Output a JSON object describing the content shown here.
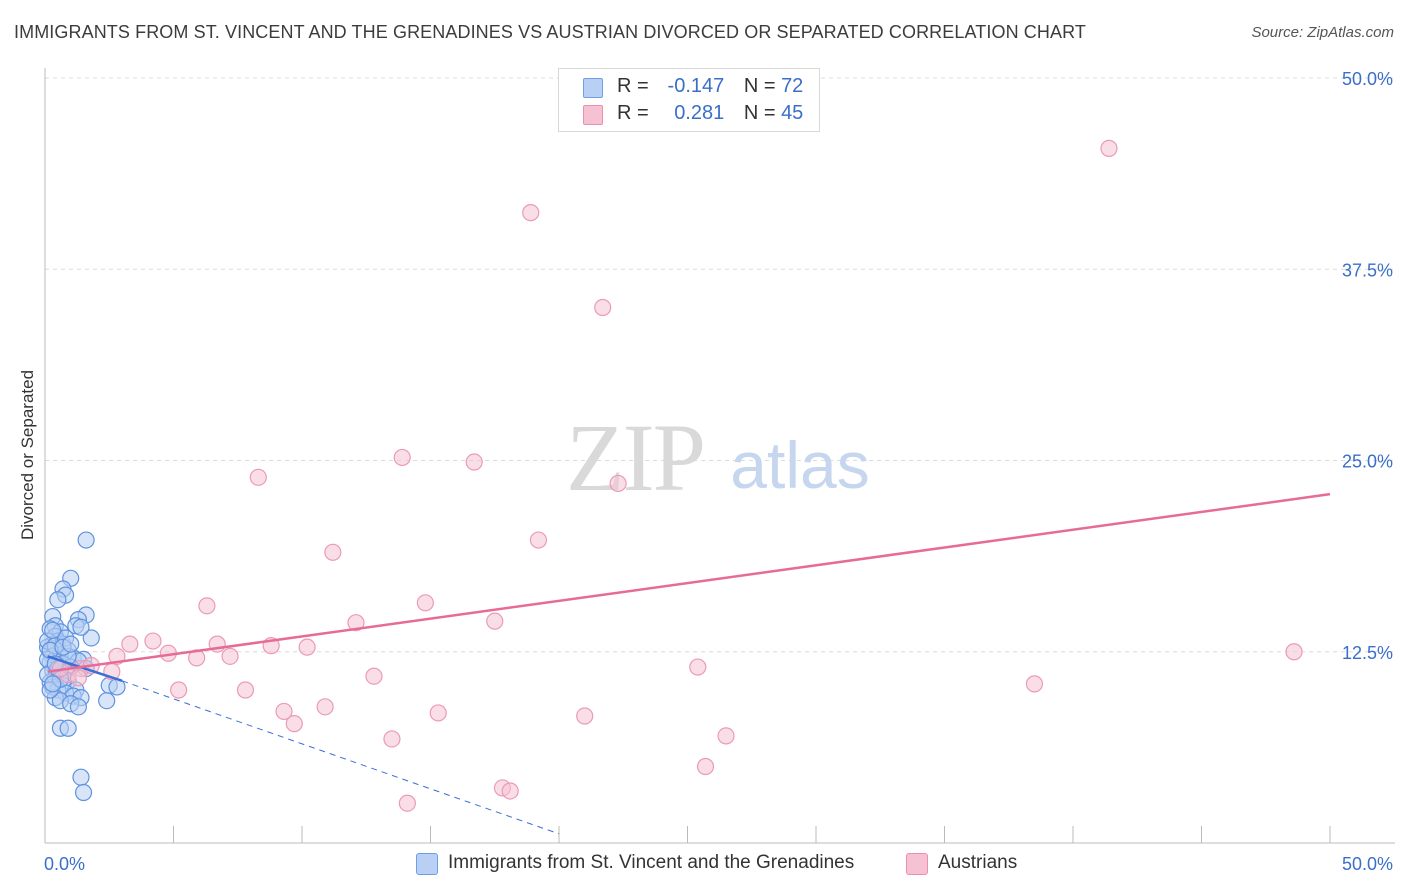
{
  "header": {
    "title": "IMMIGRANTS FROM ST. VINCENT AND THE GRENADINES VS AUSTRIAN DIVORCED OR SEPARATED CORRELATION CHART",
    "source": "Source: ZipAtlas.com"
  },
  "watermark": {
    "zip": "ZIP",
    "atlas": "atlas"
  },
  "legend": {
    "rows": [
      {
        "r_label": "R =",
        "r_value": "-0.147",
        "n_label": "N =",
        "n_value": "72"
      },
      {
        "r_label": "R =",
        "r_value": "0.281",
        "n_label": "N =",
        "n_value": "45"
      }
    ]
  },
  "colors": {
    "blue": "#3a6fd8",
    "blue_fill": "#b8d0f3",
    "pink": "#e76b97",
    "pink_fill": "#f6c2d3",
    "grid": "#dcdcdc",
    "tick_label": "#3a6fc9"
  },
  "chart_data": {
    "type": "scatter",
    "title": "IMMIGRANTS FROM ST. VINCENT AND THE GRENADINES VS AUSTRIAN DIVORCED OR SEPARATED CORRELATION CHART",
    "xlabel": "",
    "ylabel": "Divorced or Separated",
    "xlim": [
      0,
      50
    ],
    "ylim": [
      0,
      50
    ],
    "x_tick_labels": [
      "0.0%",
      "50.0%"
    ],
    "y_ticks": [
      12.5,
      25.0,
      37.5,
      50.0
    ],
    "y_tick_labels": [
      "12.5%",
      "25.0%",
      "37.5%",
      "50.0%"
    ],
    "grid": true,
    "legend_position": "top-center",
    "series": [
      {
        "name": "Immigrants from St. Vincent and the Grenadines",
        "color": "#3a6fd8",
        "r": -0.147,
        "n": 72,
        "trend": {
          "solid": [
            [
              0.1,
              12.2
            ],
            [
              3.0,
              10.6
            ]
          ],
          "dashed": [
            [
              3.0,
              10.6
            ],
            [
              20.0,
              0.6
            ]
          ]
        },
        "points": [
          [
            1.6,
            19.8
          ],
          [
            1.0,
            17.3
          ],
          [
            0.7,
            16.6
          ],
          [
            0.8,
            16.2
          ],
          [
            0.5,
            15.9
          ],
          [
            1.6,
            14.9
          ],
          [
            1.3,
            14.6
          ],
          [
            0.3,
            14.8
          ],
          [
            0.4,
            14.2
          ],
          [
            1.2,
            14.2
          ],
          [
            0.2,
            14.0
          ],
          [
            0.6,
            13.8
          ],
          [
            0.4,
            13.5
          ],
          [
            1.8,
            13.4
          ],
          [
            0.5,
            13.2
          ],
          [
            0.3,
            13.0
          ],
          [
            0.7,
            13.0
          ],
          [
            0.1,
            12.8
          ],
          [
            0.4,
            12.7
          ],
          [
            0.9,
            12.6
          ],
          [
            0.2,
            12.5
          ],
          [
            0.6,
            12.3
          ],
          [
            0.3,
            12.2
          ],
          [
            1.1,
            12.1
          ],
          [
            1.5,
            12.0
          ],
          [
            0.4,
            12.0
          ],
          [
            1.3,
            11.9
          ],
          [
            0.2,
            11.8
          ],
          [
            0.7,
            11.7
          ],
          [
            0.5,
            11.6
          ],
          [
            1.0,
            11.5
          ],
          [
            1.6,
            11.4
          ],
          [
            0.3,
            11.3
          ],
          [
            0.8,
            11.2
          ],
          [
            0.6,
            11.0
          ],
          [
            0.4,
            10.8
          ],
          [
            0.9,
            10.6
          ],
          [
            0.2,
            10.5
          ],
          [
            0.7,
            10.3
          ],
          [
            0.3,
            10.2
          ],
          [
            0.5,
            10.0
          ],
          [
            1.2,
            10.0
          ],
          [
            0.8,
            9.8
          ],
          [
            1.1,
            9.6
          ],
          [
            0.4,
            9.5
          ],
          [
            1.4,
            9.5
          ],
          [
            0.6,
            9.3
          ],
          [
            1.0,
            9.1
          ],
          [
            1.3,
            8.9
          ],
          [
            2.5,
            10.3
          ],
          [
            2.8,
            10.2
          ],
          [
            2.4,
            9.3
          ],
          [
            0.6,
            7.5
          ],
          [
            0.9,
            7.5
          ],
          [
            1.4,
            4.3
          ],
          [
            1.5,
            3.3
          ],
          [
            0.1,
            13.2
          ],
          [
            0.1,
            12.0
          ],
          [
            0.1,
            11.0
          ],
          [
            0.2,
            10.0
          ],
          [
            0.4,
            12.9
          ],
          [
            0.8,
            13.4
          ],
          [
            0.5,
            11.4
          ],
          [
            0.9,
            12.2
          ],
          [
            0.3,
            13.9
          ],
          [
            1.4,
            14.1
          ],
          [
            0.2,
            12.6
          ],
          [
            0.6,
            10.7
          ],
          [
            0.7,
            12.8
          ],
          [
            0.4,
            11.7
          ],
          [
            1.0,
            13.0
          ],
          [
            0.3,
            10.4
          ]
        ]
      },
      {
        "name": "Austrians",
        "color": "#e76b97",
        "r": 0.281,
        "n": 45,
        "trend": {
          "solid": [
            [
              0.1,
              11.2
            ],
            [
              50.0,
              22.8
            ]
          ]
        },
        "points": [
          [
            41.4,
            45.4
          ],
          [
            18.9,
            41.2
          ],
          [
            21.7,
            35.0
          ],
          [
            13.9,
            25.2
          ],
          [
            16.7,
            24.9
          ],
          [
            8.3,
            23.9
          ],
          [
            22.3,
            23.5
          ],
          [
            19.2,
            19.8
          ],
          [
            11.2,
            19.0
          ],
          [
            6.3,
            15.5
          ],
          [
            14.8,
            15.7
          ],
          [
            12.1,
            14.4
          ],
          [
            17.5,
            14.5
          ],
          [
            4.2,
            13.2
          ],
          [
            3.3,
            13.0
          ],
          [
            6.7,
            13.0
          ],
          [
            8.8,
            12.9
          ],
          [
            10.2,
            12.8
          ],
          [
            4.8,
            12.4
          ],
          [
            7.2,
            12.2
          ],
          [
            2.8,
            12.2
          ],
          [
            5.9,
            12.1
          ],
          [
            1.4,
            11.4
          ],
          [
            1.8,
            11.6
          ],
          [
            2.6,
            11.2
          ],
          [
            0.9,
            11.0
          ],
          [
            0.6,
            11.4
          ],
          [
            12.8,
            10.9
          ],
          [
            25.4,
            11.5
          ],
          [
            48.6,
            12.5
          ],
          [
            5.2,
            10.0
          ],
          [
            7.8,
            10.0
          ],
          [
            38.5,
            10.4
          ],
          [
            9.3,
            8.6
          ],
          [
            10.9,
            8.9
          ],
          [
            15.3,
            8.5
          ],
          [
            21.0,
            8.3
          ],
          [
            9.7,
            7.8
          ],
          [
            13.5,
            6.8
          ],
          [
            26.5,
            7.0
          ],
          [
            25.7,
            5.0
          ],
          [
            17.8,
            3.6
          ],
          [
            18.1,
            3.4
          ],
          [
            14.1,
            2.6
          ],
          [
            1.3,
            10.8
          ]
        ]
      }
    ]
  },
  "bottom_legend": {
    "items": [
      {
        "label": "Immigrants from St. Vincent and the Grenadines"
      },
      {
        "label": "Austrians"
      }
    ]
  }
}
